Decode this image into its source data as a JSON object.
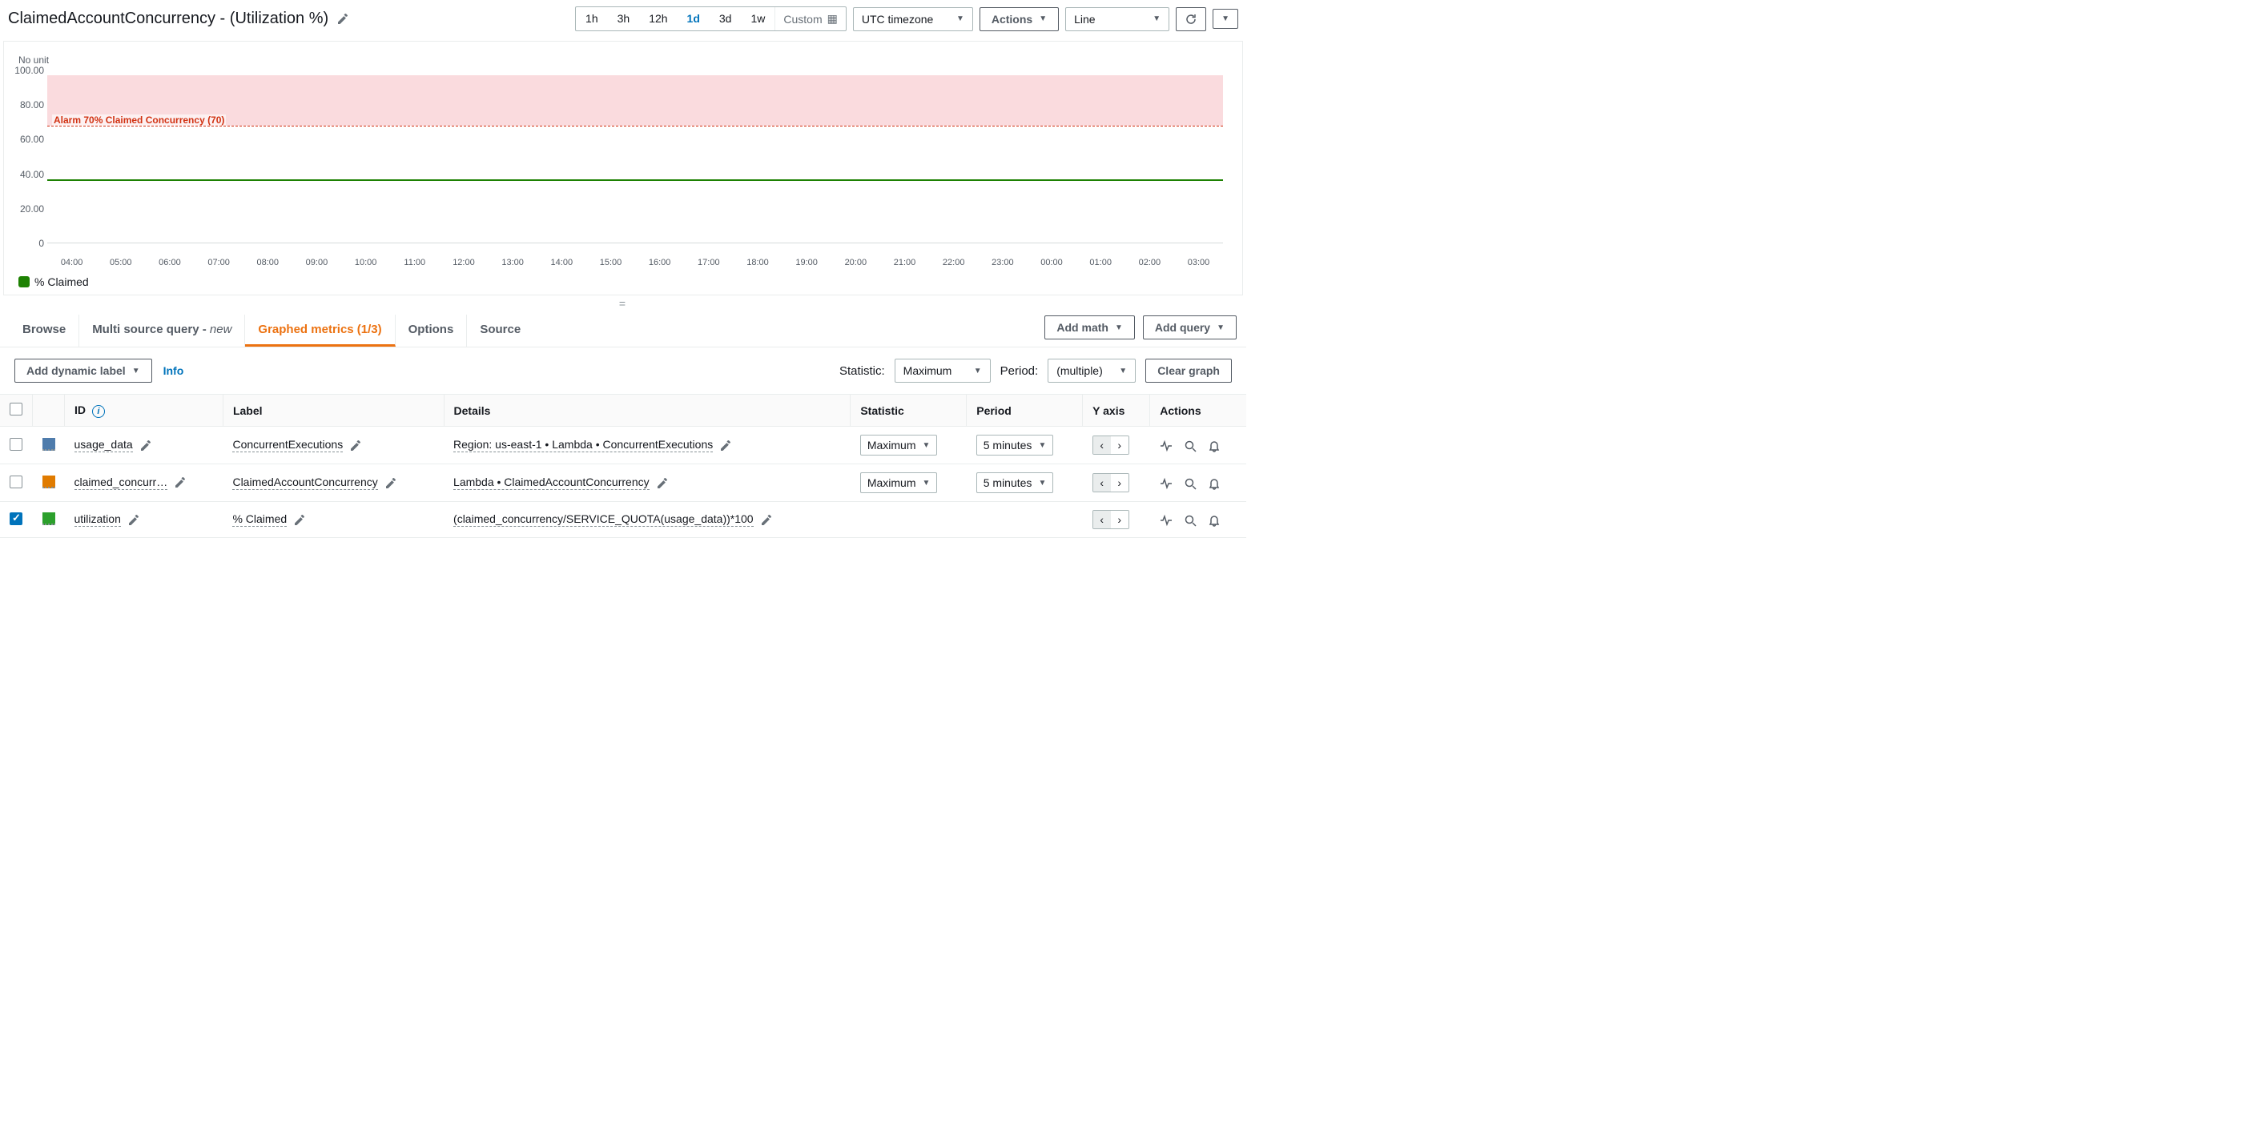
{
  "header": {
    "title": "ClaimedAccountConcurrency - (Utilization %)",
    "time_ranges": [
      "1h",
      "3h",
      "12h",
      "1d",
      "3d",
      "1w"
    ],
    "active_time_range": "1d",
    "custom_label": "Custom",
    "timezone": "UTC timezone",
    "actions_label": "Actions",
    "chart_type": "Line"
  },
  "chart": {
    "y_unit_label": "No unit",
    "ylim": [
      0,
      100
    ],
    "yticks": [
      0,
      20,
      40,
      60,
      80,
      100
    ],
    "alarm": {
      "threshold": 70,
      "label": "Alarm 70% Claimed Concurrency (70)",
      "band_color": "#f7c8cd",
      "line_color": "#d13212"
    },
    "series": {
      "name": "% Claimed",
      "color": "#1d8102",
      "value": 38
    },
    "x_ticks": [
      "04:00",
      "05:00",
      "06:00",
      "07:00",
      "08:00",
      "09:00",
      "10:00",
      "11:00",
      "12:00",
      "13:00",
      "14:00",
      "15:00",
      "16:00",
      "17:00",
      "18:00",
      "19:00",
      "20:00",
      "21:00",
      "22:00",
      "23:00",
      "00:00",
      "01:00",
      "02:00",
      "03:00"
    ],
    "legend_swatch_color": "#1d8102",
    "background_color": "#ffffff"
  },
  "tabs": {
    "items": [
      {
        "label": "Browse"
      },
      {
        "label": "Multi source query - ",
        "suffix": "new"
      },
      {
        "label": "Graphed metrics (1/3)",
        "active": true
      },
      {
        "label": "Options"
      },
      {
        "label": "Source"
      }
    ],
    "add_math": "Add math",
    "add_query": "Add query"
  },
  "controls": {
    "add_dynamic_label": "Add dynamic label",
    "info": "Info",
    "statistic_label": "Statistic:",
    "statistic_value": "Maximum",
    "period_label": "Period:",
    "period_value": "(multiple)",
    "clear_graph": "Clear graph"
  },
  "table": {
    "columns": [
      "",
      "",
      "ID",
      "Label",
      "Details",
      "Statistic",
      "Period",
      "Y axis",
      "Actions"
    ],
    "rows": [
      {
        "checked": false,
        "color": "#4f7cac",
        "id": "usage_data",
        "label": "ConcurrentExecutions",
        "details": "Region: us-east-1 • Lambda • ConcurrentExecutions",
        "statistic": "Maximum",
        "period": "5 minutes",
        "editable_detail": true
      },
      {
        "checked": false,
        "color": "#e07b00",
        "id": "claimed_concurr…",
        "id_truncated": true,
        "label": "ClaimedAccountConcurrency",
        "details": "Lambda • ClaimedAccountConcurrency",
        "statistic": "Maximum",
        "period": "5 minutes",
        "editable_detail": true
      },
      {
        "checked": true,
        "color": "#2ca02c",
        "id": "utilization",
        "label": "% Claimed",
        "details": "(claimed_concurrency/SERVICE_QUOTA(usage_data))*100",
        "statistic": "",
        "period": "",
        "editable_detail": true
      }
    ]
  }
}
